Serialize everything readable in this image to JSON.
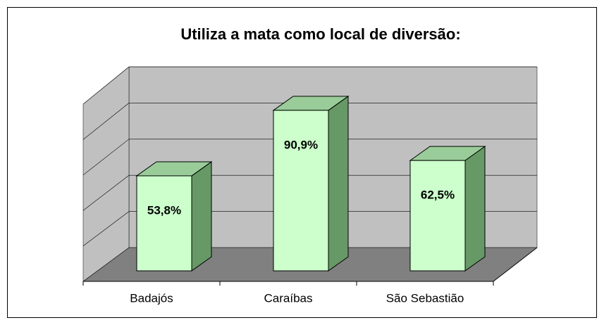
{
  "chart_data": {
    "type": "bar3d",
    "title": "Utiliza a mata como local de diversão:",
    "categories": [
      "Badajós",
      "Caraíbas",
      "São Sebastião"
    ],
    "values": [
      53.8,
      90.9,
      62.5
    ],
    "value_labels": [
      "53,8%",
      "90,9%",
      "62,5%"
    ],
    "colors": {
      "front": "#ccffcc",
      "top": "#99cc99",
      "side": "#669966"
    },
    "ylim": [
      0,
      100
    ],
    "yticks": [
      0,
      20,
      40,
      60,
      80,
      100
    ],
    "grid": true
  }
}
